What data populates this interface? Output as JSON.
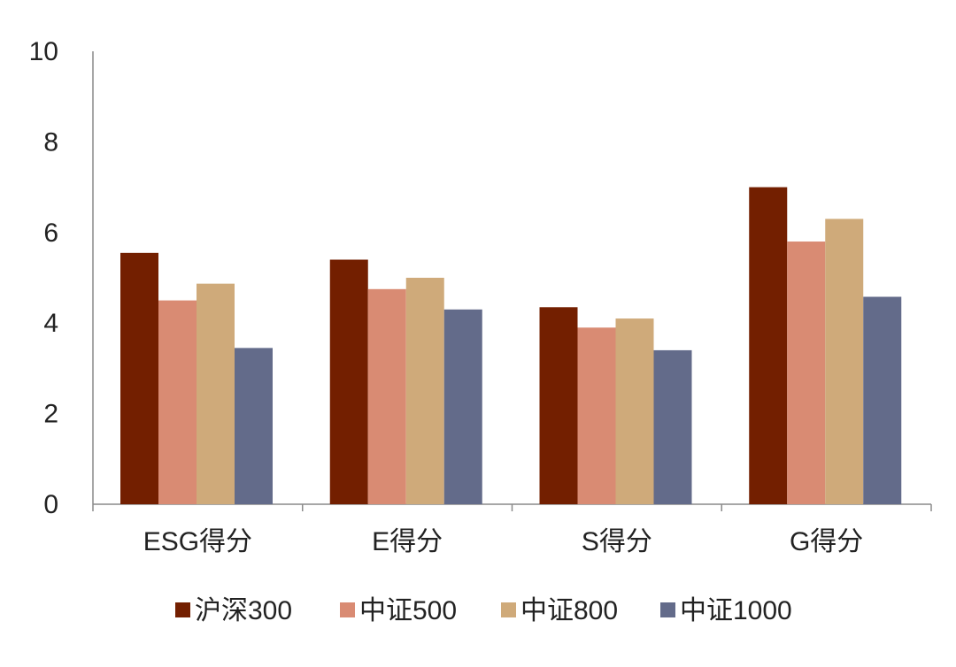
{
  "chart_data": {
    "type": "bar",
    "title": "",
    "xlabel": "",
    "ylabel": "",
    "ylim": [
      0,
      10
    ],
    "yticks": [
      "0",
      "2",
      "4",
      "6",
      "8",
      "10"
    ],
    "grid": false,
    "legend_position": "bottom",
    "categories": [
      "ESG得分",
      "E得分",
      "S得分",
      "G得分"
    ],
    "series": [
      {
        "name": "沪深300",
        "color": "#731f00",
        "values": [
          5.55,
          5.4,
          4.35,
          7.0
        ]
      },
      {
        "name": "中证500",
        "color": "#d98b73",
        "values": [
          4.5,
          4.75,
          3.9,
          5.8
        ]
      },
      {
        "name": "中证800",
        "color": "#cfaa7a",
        "values": [
          4.87,
          5.0,
          4.1,
          6.3
        ]
      },
      {
        "name": "中证1000",
        "color": "#636b8a",
        "values": [
          3.45,
          4.3,
          3.4,
          4.58
        ]
      }
    ]
  }
}
